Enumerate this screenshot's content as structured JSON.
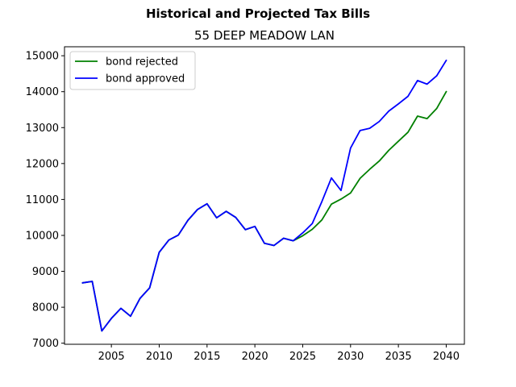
{
  "chart_data": {
    "type": "line",
    "suptitle": "Historical and Projected Tax Bills",
    "title": "55 DEEP MEADOW LAN",
    "xlabel": "",
    "ylabel": "",
    "xlim": [
      2000.1,
      2041.9
    ],
    "ylim": [
      6970,
      15250
    ],
    "xticks": [
      2005,
      2010,
      2015,
      2020,
      2025,
      2030,
      2035,
      2040
    ],
    "yticks": [
      7000,
      8000,
      9000,
      10000,
      11000,
      12000,
      13000,
      14000,
      15000
    ],
    "grid": false,
    "legend_position": "upper left",
    "x": [
      2002,
      2003,
      2004,
      2005,
      2006,
      2007,
      2008,
      2009,
      2010,
      2011,
      2012,
      2013,
      2014,
      2015,
      2016,
      2017,
      2018,
      2019,
      2020,
      2021,
      2022,
      2023,
      2024,
      2025,
      2026,
      2027,
      2028,
      2029,
      2030,
      2031,
      2032,
      2033,
      2034,
      2035,
      2036,
      2037,
      2038,
      2039,
      2040
    ],
    "series": [
      {
        "name": "bond rejected",
        "color": "#008000",
        "values": [
          8680,
          8720,
          7340,
          7690,
          7970,
          7750,
          8250,
          8540,
          9530,
          9870,
          10010,
          10420,
          10720,
          10880,
          10490,
          10670,
          10500,
          10160,
          10250,
          9780,
          9720,
          9920,
          9850,
          9990,
          10170,
          10430,
          10870,
          11010,
          11180,
          11590,
          11840,
          12070,
          12370,
          12620,
          12870,
          13320,
          13250,
          13530,
          14000
        ]
      },
      {
        "name": "bond approved",
        "color": "#0000ff",
        "values": [
          8680,
          8720,
          7340,
          7690,
          7970,
          7750,
          8250,
          8540,
          9530,
          9870,
          10010,
          10420,
          10720,
          10880,
          10490,
          10670,
          10500,
          10160,
          10250,
          9780,
          9720,
          9920,
          9850,
          10070,
          10330,
          10940,
          11600,
          11250,
          12430,
          12920,
          12980,
          13170,
          13460,
          13660,
          13870,
          14310,
          14210,
          14440,
          14870
        ]
      }
    ]
  }
}
